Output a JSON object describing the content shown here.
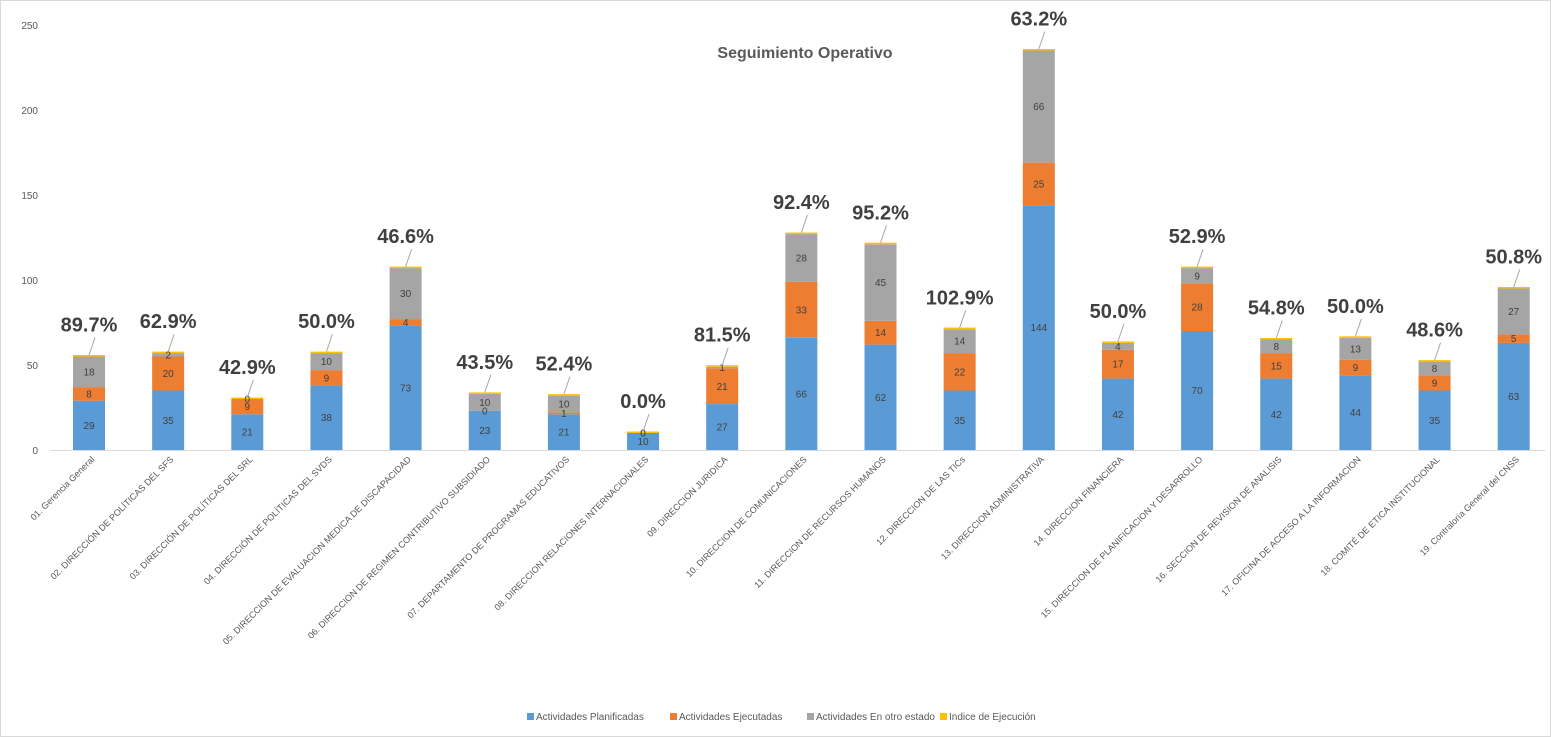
{
  "chart_data": {
    "type": "bar",
    "stacked": true,
    "title": "Seguimiento Operativo",
    "xlabel": "",
    "ylabel": "",
    "ylim": [
      0,
      250
    ],
    "yticks": [
      0,
      50,
      100,
      150,
      200,
      250
    ],
    "grid": false,
    "legend_position": "bottom",
    "categories": [
      "01. Gerencia General",
      "02. DIRECCIÓN DE POLÍTICAS DEL SFS",
      "03. DIRECCIÓN DE POLÍTICAS DEL SRL",
      "04. DIRECCIÓN DE POLÍTICAS DEL SVDS",
      "05. DIRECCION DE EVALUACION MEDICA DE DISCAPACIDAD",
      "06. DIRECCION DE REGIMEN CONTRIBUTIVO SUBSIDIADO",
      "07. DEPARTAMENTO DE PROGRAMAS EDUCATIVOS",
      "08. DIRECCION RELACIONES INTERNACIONALES",
      "09. DIRECCION JURIDICA",
      "10. DIRECCION DE COMUNICACIONES",
      "11. DIRECCION DE RECURSOS HUMANOS",
      "12. DIRECCION DE LAS TICs",
      "13. DIRECCION ADMINISTRATIVA",
      "14. DIRECCION FINANCIERA",
      "15. DIRECCION DE PLANIFICACION Y DESARROLLO",
      "16. SECCION DE REVISION DE ANALISIS",
      "17. OFICINA DE ACCESO A LA INFORMACION",
      "18. COMITÉ DE ETICA INSTITUCIONAL",
      "19. Contraloría General del CNSS"
    ],
    "series": [
      {
        "name": "Actividades Planificadas",
        "color": "#5B9BD5",
        "values": [
          29,
          35,
          21,
          38,
          73,
          23,
          21,
          10,
          27,
          66,
          62,
          35,
          144,
          42,
          70,
          42,
          44,
          35,
          63
        ]
      },
      {
        "name": "Actividades Ejecutadas",
        "color": "#ED7D31",
        "values": [
          8,
          20,
          9,
          9,
          4,
          0,
          1,
          0,
          21,
          33,
          14,
          22,
          25,
          17,
          28,
          15,
          9,
          9,
          5
        ]
      },
      {
        "name": "Actividades En otro estado",
        "color": "#A5A5A5",
        "values": [
          18,
          2,
          0,
          10,
          30,
          10,
          10,
          0,
          1,
          28,
          45,
          14,
          66,
          4,
          9,
          8,
          13,
          8,
          27
        ]
      },
      {
        "name": "Indice de Ejecución",
        "color": "#FFC000",
        "values": [
          0.897,
          0.629,
          0.429,
          0.5,
          0.466,
          0.435,
          0.524,
          0.0,
          0.815,
          0.924,
          0.952,
          1.029,
          0.632,
          0.5,
          0.529,
          0.548,
          0.5,
          0.486,
          0.508
        ]
      }
    ],
    "execution_index_labels": [
      "89.7%",
      "62.9%",
      "42.9%",
      "50.0%",
      "46.6%",
      "43.5%",
      "52.4%",
      "0.0%",
      "81.5%",
      "92.4%",
      "95.2%",
      "102.9%",
      "63.2%",
      "50.0%",
      "52.9%",
      "54.8%",
      "50.0%",
      "48.6%",
      "50.8%"
    ]
  }
}
